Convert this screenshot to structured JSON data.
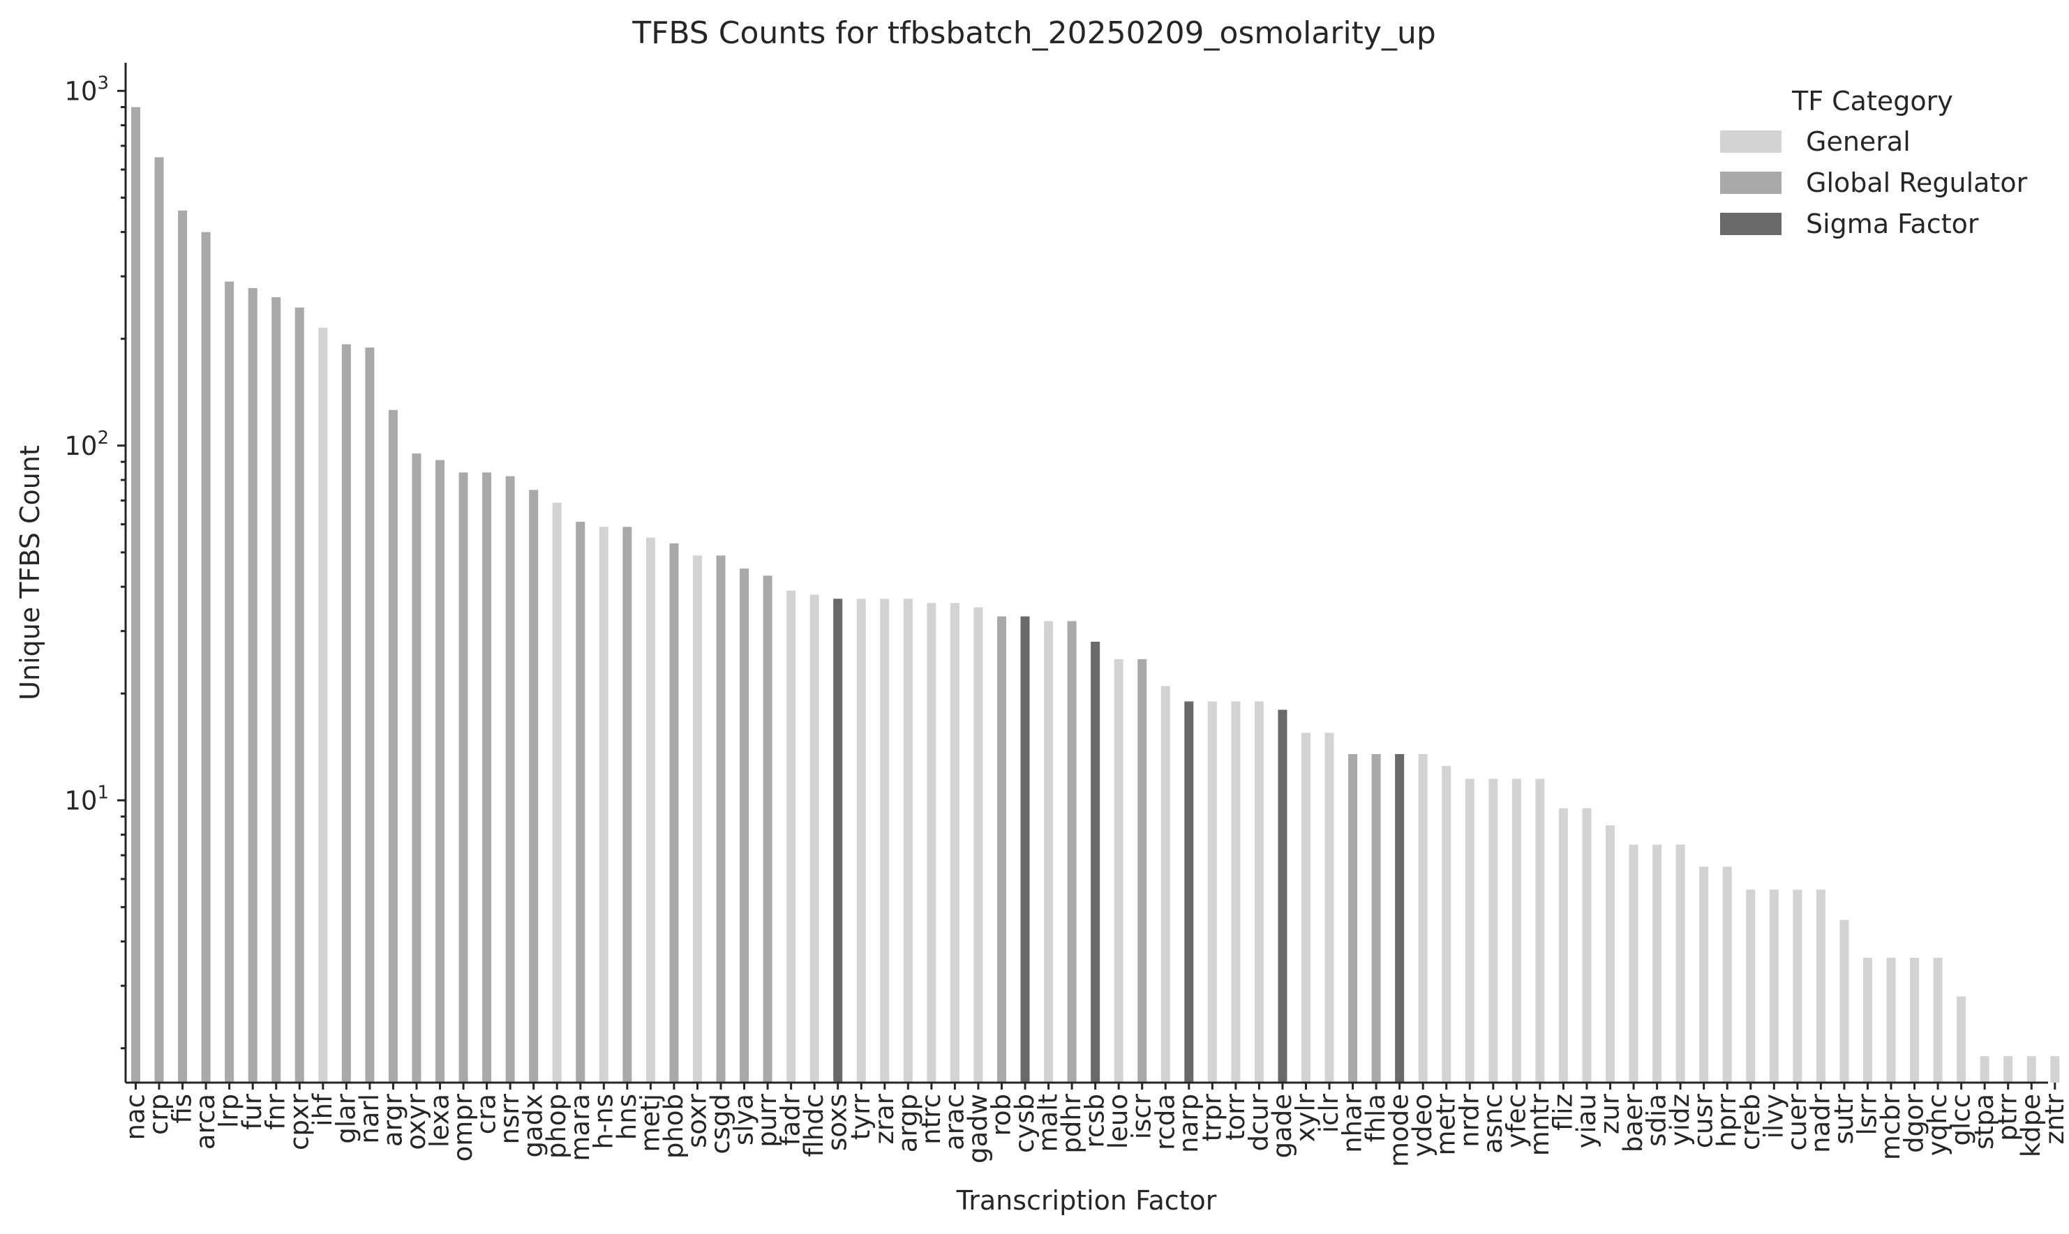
{
  "chart_data": {
    "type": "bar",
    "title": "TFBS Counts for tfbsbatch_20250209_osmolarity_up",
    "xlabel": "Transcription Factor",
    "ylabel": "Unique TFBS Count",
    "yscale": "log",
    "ylim": [
      1.6,
      1200
    ],
    "y_ticks": [
      {
        "base": "10",
        "exp": "1",
        "value": 10
      },
      {
        "base": "10",
        "exp": "2",
        "value": 100
      },
      {
        "base": "10",
        "exp": "3",
        "value": 1000
      }
    ],
    "grid": false,
    "legend": {
      "title": "TF Category",
      "placement": "top-right",
      "entries": [
        {
          "label": "General",
          "color": "#d3d3d3"
        },
        {
          "label": "Global Regulator",
          "color": "#a9a9a9"
        },
        {
          "label": "Sigma Factor",
          "color": "#696969"
        }
      ]
    },
    "colors": {
      "General": "#d3d3d3",
      "Global Regulator": "#a9a9a9",
      "Sigma Factor": "#696969"
    },
    "bars": [
      {
        "tf": "nac",
        "value": 900,
        "category": "Global Regulator"
      },
      {
        "tf": "crp",
        "value": 650,
        "category": "Global Regulator"
      },
      {
        "tf": "fis",
        "value": 460,
        "category": "Global Regulator"
      },
      {
        "tf": "arca",
        "value": 400,
        "category": "Global Regulator"
      },
      {
        "tf": "lrp",
        "value": 290,
        "category": "Global Regulator"
      },
      {
        "tf": "fur",
        "value": 278,
        "category": "Global Regulator"
      },
      {
        "tf": "fnr",
        "value": 262,
        "category": "Global Regulator"
      },
      {
        "tf": "cpxr",
        "value": 245,
        "category": "Global Regulator"
      },
      {
        "tf": "ihf",
        "value": 215,
        "category": "General"
      },
      {
        "tf": "glar",
        "value": 193,
        "category": "Global Regulator"
      },
      {
        "tf": "narl",
        "value": 189,
        "category": "Global Regulator"
      },
      {
        "tf": "argr",
        "value": 126,
        "category": "Global Regulator"
      },
      {
        "tf": "oxyr",
        "value": 95,
        "category": "Global Regulator"
      },
      {
        "tf": "lexa",
        "value": 91,
        "category": "Global Regulator"
      },
      {
        "tf": "ompr",
        "value": 84,
        "category": "Global Regulator"
      },
      {
        "tf": "cra",
        "value": 84,
        "category": "Global Regulator"
      },
      {
        "tf": "nsrr",
        "value": 82,
        "category": "Global Regulator"
      },
      {
        "tf": "gadx",
        "value": 75,
        "category": "Global Regulator"
      },
      {
        "tf": "phop",
        "value": 69,
        "category": "General"
      },
      {
        "tf": "mara",
        "value": 61,
        "category": "Global Regulator"
      },
      {
        "tf": "h-ns",
        "value": 59,
        "category": "General"
      },
      {
        "tf": "hns",
        "value": 59,
        "category": "Global Regulator"
      },
      {
        "tf": "metj",
        "value": 55,
        "category": "General"
      },
      {
        "tf": "phob",
        "value": 53,
        "category": "Global Regulator"
      },
      {
        "tf": "soxr",
        "value": 49,
        "category": "General"
      },
      {
        "tf": "csgd",
        "value": 49,
        "category": "Global Regulator"
      },
      {
        "tf": "slya",
        "value": 45,
        "category": "Global Regulator"
      },
      {
        "tf": "purr",
        "value": 43,
        "category": "Global Regulator"
      },
      {
        "tf": "fadr",
        "value": 39,
        "category": "General"
      },
      {
        "tf": "flhdc",
        "value": 38,
        "category": "General"
      },
      {
        "tf": "soxs",
        "value": 37,
        "category": "Sigma Factor"
      },
      {
        "tf": "tyrr",
        "value": 37,
        "category": "General"
      },
      {
        "tf": "zrar",
        "value": 37,
        "category": "General"
      },
      {
        "tf": "argp",
        "value": 37,
        "category": "General"
      },
      {
        "tf": "ntrc",
        "value": 36,
        "category": "General"
      },
      {
        "tf": "arac",
        "value": 36,
        "category": "General"
      },
      {
        "tf": "gadw",
        "value": 35,
        "category": "General"
      },
      {
        "tf": "rob",
        "value": 33,
        "category": "Global Regulator"
      },
      {
        "tf": "cysb",
        "value": 33,
        "category": "Sigma Factor"
      },
      {
        "tf": "malt",
        "value": 32,
        "category": "General"
      },
      {
        "tf": "pdhr",
        "value": 32,
        "category": "Global Regulator"
      },
      {
        "tf": "rcsb",
        "value": 28,
        "category": "Sigma Factor"
      },
      {
        "tf": "leuo",
        "value": 25,
        "category": "General"
      },
      {
        "tf": "iscr",
        "value": 25,
        "category": "Global Regulator"
      },
      {
        "tf": "rcda",
        "value": 21,
        "category": "General"
      },
      {
        "tf": "narp",
        "value": 19,
        "category": "Sigma Factor"
      },
      {
        "tf": "trpr",
        "value": 19,
        "category": "General"
      },
      {
        "tf": "torr",
        "value": 19,
        "category": "General"
      },
      {
        "tf": "dcur",
        "value": 19,
        "category": "General"
      },
      {
        "tf": "gade",
        "value": 18,
        "category": "Sigma Factor"
      },
      {
        "tf": "xylr",
        "value": 15.5,
        "category": "General"
      },
      {
        "tf": "iclr",
        "value": 15.5,
        "category": "General"
      },
      {
        "tf": "nhar",
        "value": 13.5,
        "category": "Global Regulator"
      },
      {
        "tf": "fhla",
        "value": 13.5,
        "category": "Global Regulator"
      },
      {
        "tf": "mode",
        "value": 13.5,
        "category": "Sigma Factor"
      },
      {
        "tf": "ydeo",
        "value": 13.5,
        "category": "General"
      },
      {
        "tf": "metr",
        "value": 12.5,
        "category": "General"
      },
      {
        "tf": "nrdr",
        "value": 11.5,
        "category": "General"
      },
      {
        "tf": "asnc",
        "value": 11.5,
        "category": "General"
      },
      {
        "tf": "yfec",
        "value": 11.5,
        "category": "General"
      },
      {
        "tf": "mntr",
        "value": 11.5,
        "category": "General"
      },
      {
        "tf": "fliz",
        "value": 9.5,
        "category": "General"
      },
      {
        "tf": "yiau",
        "value": 9.5,
        "category": "General"
      },
      {
        "tf": "zur",
        "value": 8.5,
        "category": "General"
      },
      {
        "tf": "baer",
        "value": 7.5,
        "category": "General"
      },
      {
        "tf": "sdia",
        "value": 7.5,
        "category": "General"
      },
      {
        "tf": "yidz",
        "value": 7.5,
        "category": "General"
      },
      {
        "tf": "cusr",
        "value": 6.5,
        "category": "General"
      },
      {
        "tf": "hprr",
        "value": 6.5,
        "category": "General"
      },
      {
        "tf": "creb",
        "value": 5.6,
        "category": "General"
      },
      {
        "tf": "ilvy",
        "value": 5.6,
        "category": "General"
      },
      {
        "tf": "cuer",
        "value": 5.6,
        "category": "General"
      },
      {
        "tf": "nadr",
        "value": 5.6,
        "category": "General"
      },
      {
        "tf": "sutr",
        "value": 4.6,
        "category": "General"
      },
      {
        "tf": "lsrr",
        "value": 3.6,
        "category": "General"
      },
      {
        "tf": "mcbr",
        "value": 3.6,
        "category": "General"
      },
      {
        "tf": "dgor",
        "value": 3.6,
        "category": "General"
      },
      {
        "tf": "yqhc",
        "value": 3.6,
        "category": "General"
      },
      {
        "tf": "glcc",
        "value": 2.8,
        "category": "General"
      },
      {
        "tf": "stpa",
        "value": 1.9,
        "category": "General"
      },
      {
        "tf": "ptrr",
        "value": 1.9,
        "category": "General"
      },
      {
        "tf": "kdpe",
        "value": 1.9,
        "category": "General"
      },
      {
        "tf": "zntr",
        "value": 1.9,
        "category": "General"
      }
    ]
  }
}
